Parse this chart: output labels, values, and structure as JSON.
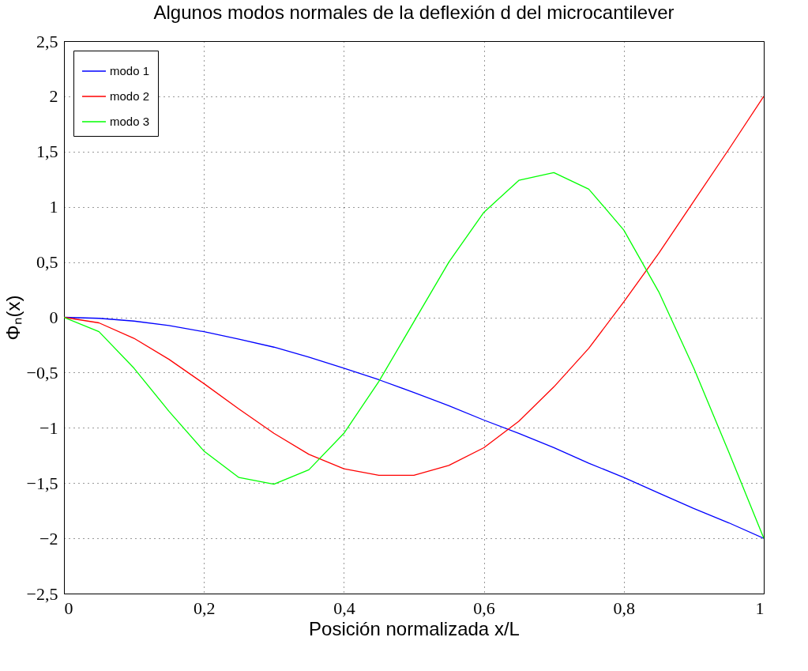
{
  "chart_data": {
    "type": "line",
    "title": "Algunos modos normales de la deflexión d del microcantilever",
    "xlabel": "Posición normalizada x/L",
    "ylabel": "Φₙ(x)",
    "x": [
      0,
      0.05,
      0.1,
      0.15,
      0.2,
      0.25,
      0.3,
      0.35,
      0.4,
      0.45,
      0.5,
      0.55,
      0.6,
      0.65,
      0.7,
      0.75,
      0.8,
      0.85,
      0.9,
      0.95,
      1
    ],
    "series": [
      {
        "name": "modo 1",
        "color": "#0000ff",
        "values": [
          0,
          -0.009,
          -0.034,
          -0.074,
          -0.13,
          -0.197,
          -0.27,
          -0.36,
          -0.46,
          -0.565,
          -0.68,
          -0.8,
          -0.93,
          -1.05,
          -1.18,
          -1.32,
          -1.45,
          -1.59,
          -1.73,
          -1.86,
          -2
        ]
      },
      {
        "name": "modo 2",
        "color": "#ff0000",
        "values": [
          0,
          -0.05,
          -0.19,
          -0.38,
          -0.6,
          -0.83,
          -1.05,
          -1.24,
          -1.37,
          -1.43,
          -1.43,
          -1.34,
          -1.18,
          -0.94,
          -0.63,
          -0.28,
          0.14,
          0.58,
          1.05,
          1.52,
          2
        ]
      },
      {
        "name": "modo 3",
        "color": "#00ff00",
        "values": [
          0,
          -0.13,
          -0.46,
          -0.85,
          -1.21,
          -1.45,
          -1.51,
          -1.38,
          -1.05,
          -0.58,
          -0.04,
          0.5,
          0.95,
          1.24,
          1.31,
          1.16,
          0.79,
          0.23,
          -0.46,
          -1.22,
          -2
        ]
      }
    ],
    "xlim": [
      0,
      1
    ],
    "ylim": [
      -2.5,
      2.5
    ],
    "xticks": [
      0,
      {
        "value": 0.2,
        "label": "0,2"
      },
      {
        "value": 0.4,
        "label": "0,4"
      },
      {
        "value": 0.6,
        "label": "0,6"
      },
      {
        "value": 0.8,
        "label": "0,8"
      },
      1
    ],
    "yticks": [
      {
        "value": -2.5,
        "label": "−2,5"
      },
      {
        "value": -2,
        "label": "−2"
      },
      {
        "value": -1.5,
        "label": "−1,5"
      },
      {
        "value": -1,
        "label": "−1"
      },
      {
        "value": -0.5,
        "label": "−0,5"
      },
      0,
      {
        "value": 0.5,
        "label": "0,5"
      },
      1,
      {
        "value": 1.5,
        "label": "1,5"
      },
      2,
      {
        "value": 2.5,
        "label": "2,5"
      }
    ],
    "grid": true,
    "legend": "top left",
    "line_style": "solid",
    "marker": "none"
  }
}
